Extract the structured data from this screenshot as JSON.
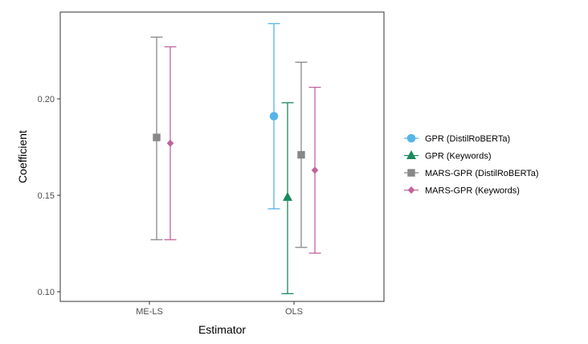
{
  "chart_data": {
    "type": "errorbar",
    "xlabel": "Estimator",
    "ylabel": "Coefficient",
    "categories": [
      "ME-LS",
      "OLS"
    ],
    "ylim": [
      0.095,
      0.245
    ],
    "yticks": [
      "0.10",
      "0.15",
      "0.20"
    ],
    "grid": false,
    "legend_position": "right",
    "series": [
      {
        "name": "GPR (DistilRoBERTa)",
        "color": "#56B4E9",
        "marker": "circle",
        "points": [
          {
            "category": "OLS",
            "estimate": 0.191,
            "lower": 0.143,
            "upper": 0.239
          }
        ]
      },
      {
        "name": "GPR (Keywords)",
        "color": "#1B8A5E",
        "marker": "triangle",
        "points": [
          {
            "category": "OLS",
            "estimate": 0.149,
            "lower": 0.099,
            "upper": 0.198
          }
        ]
      },
      {
        "name": "MARS-GPR (DistilRoBERTa)",
        "color": "#888888",
        "marker": "square",
        "points": [
          {
            "category": "ME-LS",
            "estimate": 0.18,
            "lower": 0.127,
            "upper": 0.232
          },
          {
            "category": "OLS",
            "estimate": 0.171,
            "lower": 0.123,
            "upper": 0.219
          }
        ]
      },
      {
        "name": "MARS-GPR (Keywords)",
        "color": "#C0649C",
        "marker": "diamond",
        "points": [
          {
            "category": "ME-LS",
            "estimate": 0.177,
            "lower": 0.127,
            "upper": 0.227
          },
          {
            "category": "OLS",
            "estimate": 0.163,
            "lower": 0.12,
            "upper": 0.206
          }
        ]
      }
    ]
  }
}
